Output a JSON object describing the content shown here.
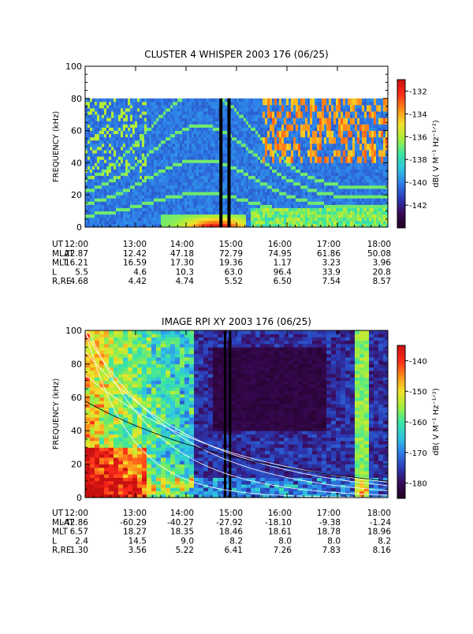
{
  "chart_data": [
    {
      "type": "heatmap",
      "title": "CLUSTER 4 WHISPER 2003 176 (06/25)",
      "xlabel": "",
      "ylabel": "FREQUENCY (kHz)",
      "x_tick_labels": [
        "12:00",
        "13:00",
        "14:00",
        "15:00",
        "16:00",
        "17:00",
        "18:00"
      ],
      "xlim_hours": [
        12,
        18
      ],
      "ylim": [
        0,
        100
      ],
      "y_ticks": [
        0,
        20,
        40,
        60,
        80,
        100
      ],
      "data_frequency_range": [
        0,
        80
      ],
      "colorbar": {
        "label": "dB( V M⁻¹ Hz⁻¹ᐟ²)",
        "range": [
          -144,
          -131
        ],
        "ticks": [
          -132,
          -134,
          -136,
          -138,
          -140,
          -142
        ]
      },
      "colormap": [
        "#200020",
        "#3a0a5a",
        "#2a3ab4",
        "#2e7ee8",
        "#30c6e0",
        "#39e6a0",
        "#a6ee3c",
        "#f2e22a",
        "#ff8c1a",
        "#ff2a1a",
        "#c81010"
      ],
      "ephemeris": {
        "rows": [
          {
            "label": "UT",
            "values": [
              "12:00",
              "13:00",
              "14:00",
              "15:00",
              "16:00",
              "17:00",
              "18:00"
            ]
          },
          {
            "label": "MLAT",
            "values": [
              "22.87",
              "12.42",
              "47.18",
              "72.79",
              "74.95",
              "61.86",
              "50.08"
            ]
          },
          {
            "label": "MLT",
            "values": [
              "16.21",
              "16.59",
              "17.30",
              "19.36",
              "1.17",
              "3.23",
              "3.96"
            ]
          },
          {
            "label": "L",
            "values": [
              "5.5",
              "4.6",
              "10.3",
              "63.0",
              "96.4",
              "33.9",
              "20.8"
            ]
          },
          {
            "label": "R,RE",
            "values": [
              "4.68",
              "4.42",
              "4.74",
              "5.52",
              "6.50",
              "7.54",
              "8.57"
            ]
          }
        ]
      }
    },
    {
      "type": "heatmap",
      "title": "IMAGE RPI XY 2003 176 (06/25)",
      "xlabel": "",
      "ylabel": "FREQUENCY (kHz)",
      "x_tick_labels": [
        "12:00",
        "13:00",
        "14:00",
        "15:00",
        "16:00",
        "17:00",
        "18:00"
      ],
      "xlim_hours": [
        12,
        18
      ],
      "ylim": [
        0,
        100
      ],
      "y_ticks": [
        0,
        20,
        40,
        60,
        80,
        100
      ],
      "colorbar": {
        "label": "dB( V M⁻¹ Hz⁻¹ᐟ²)",
        "range": [
          -185,
          -135
        ],
        "ticks": [
          -140,
          -150,
          -160,
          -170,
          -180
        ]
      },
      "colormap": [
        "#200020",
        "#3a0a5a",
        "#2a3ab4",
        "#2e7ee8",
        "#30c6e0",
        "#39e6a0",
        "#a6ee3c",
        "#f2e22a",
        "#ff8c1a",
        "#ff2a1a",
        "#c81010"
      ],
      "ephemeris": {
        "rows": [
          {
            "label": "UT",
            "values": [
              "12:00",
              "13:00",
              "14:00",
              "15:00",
              "16:00",
              "17:00",
              "18:00"
            ]
          },
          {
            "label": "MLAT",
            "values": [
              "-42.86",
              "-60.29",
              "-40.27",
              "-27.92",
              "-18.10",
              "-9.38",
              "-1.24"
            ]
          },
          {
            "label": "MLT",
            "values": [
              "6.57",
              "18.27",
              "18.35",
              "18.46",
              "18.61",
              "18.78",
              "18.96"
            ]
          },
          {
            "label": "L",
            "values": [
              "2.4",
              "14.5",
              "9.0",
              "8.2",
              "8.0",
              "8.0",
              "8.2"
            ]
          },
          {
            "label": "R,RE",
            "values": [
              "1.30",
              "3.56",
              "5.22",
              "6.41",
              "7.26",
              "7.83",
              "8.16"
            ]
          }
        ]
      }
    }
  ]
}
